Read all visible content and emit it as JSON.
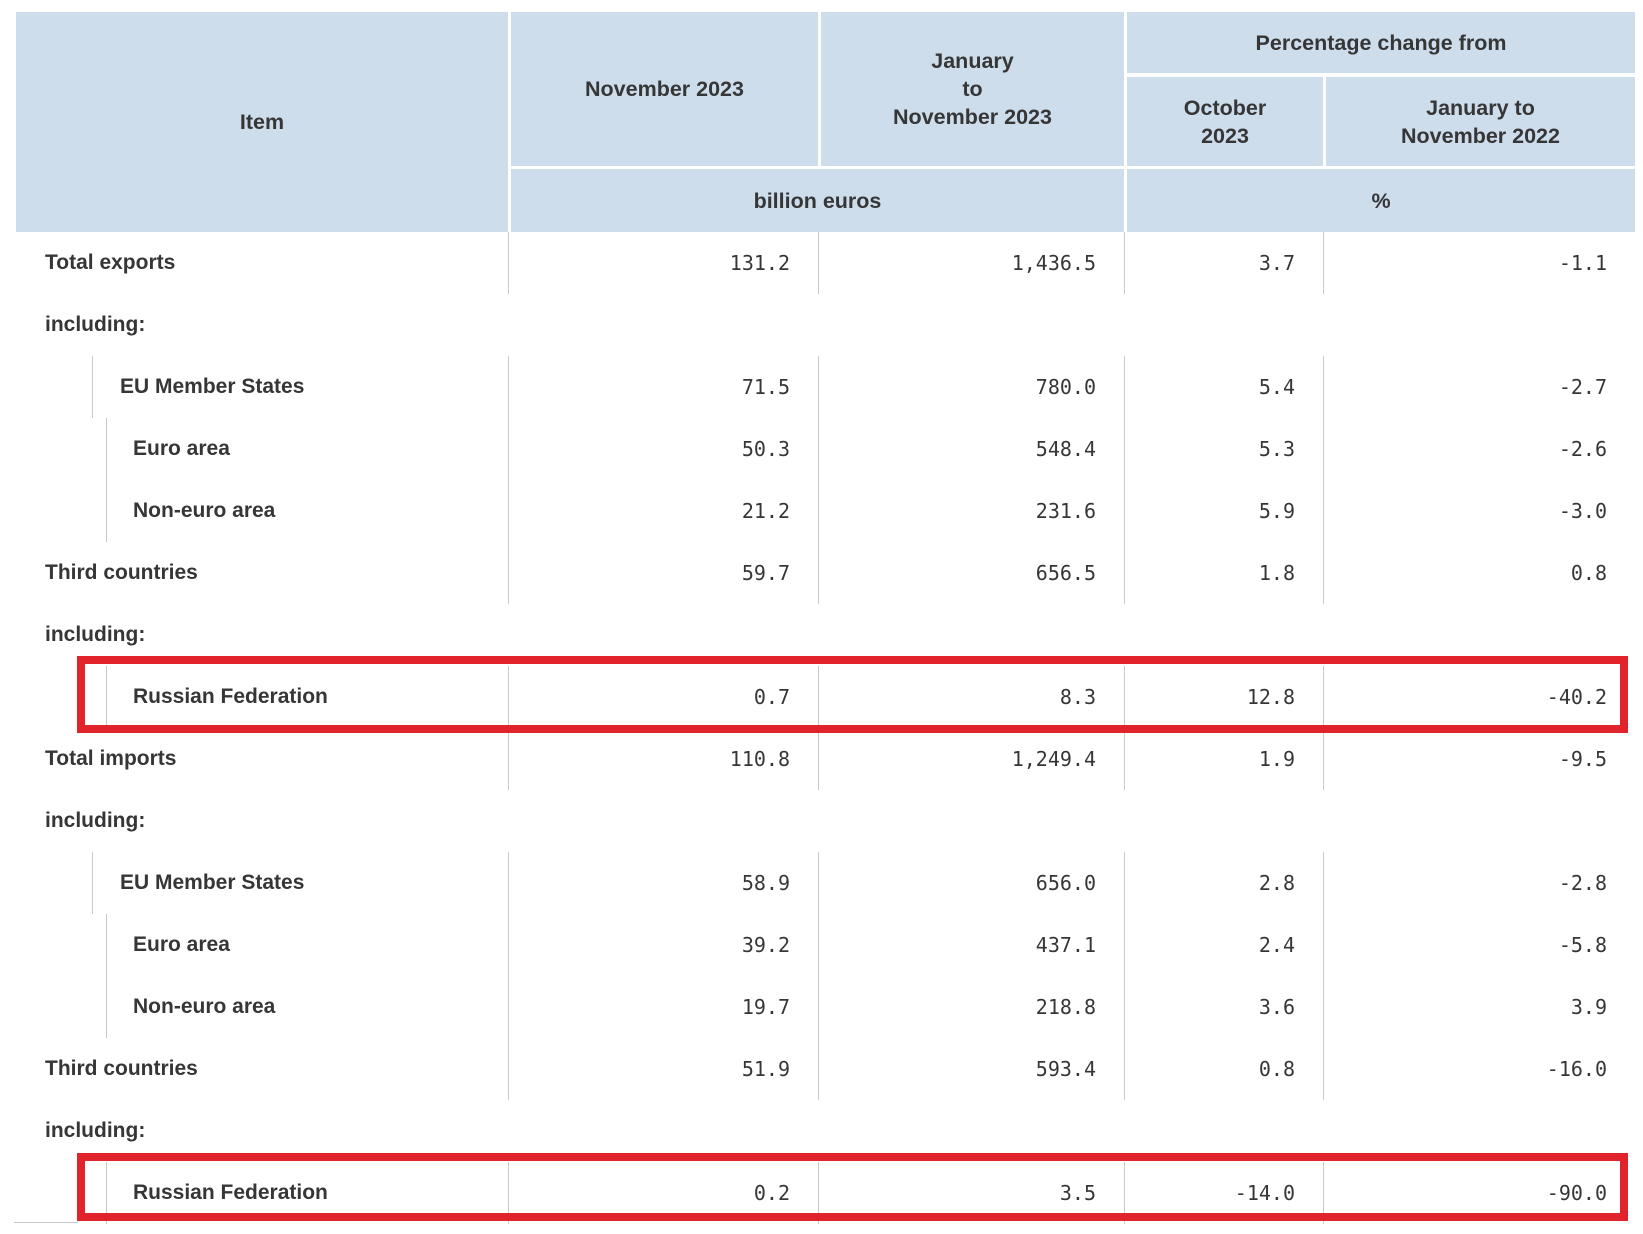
{
  "table": {
    "header": {
      "item": "Item",
      "november_2023": "November 2023",
      "jan_to_nov_2023_lines": [
        "January",
        "to",
        "November 2023"
      ],
      "percentage_change_from": "Percentage change from",
      "october_2023_lines": [
        "October",
        "2023"
      ],
      "jan_to_nov_2022_lines": [
        "January to",
        "November 2022"
      ],
      "unit_left": "billion euros",
      "unit_right": "%"
    },
    "rows": [
      {
        "label": "Total exports",
        "indent": 0,
        "values": [
          "131.2",
          "1,436.5",
          "3.7",
          "-1.1"
        ]
      },
      {
        "label": "including:",
        "type": "including"
      },
      {
        "label": "EU Member States",
        "indent": 1,
        "values": [
          "71.5",
          "780.0",
          "5.4",
          "-2.7"
        ]
      },
      {
        "label": "Euro area",
        "indent": 2,
        "values": [
          "50.3",
          "548.4",
          "5.3",
          "-2.6"
        ]
      },
      {
        "label": "Non-euro area",
        "indent": 2,
        "values": [
          "21.2",
          "231.6",
          "5.9",
          "-3.0"
        ]
      },
      {
        "label": "Third countries",
        "indent": 0,
        "values": [
          "59.7",
          "656.5",
          "1.8",
          "0.8"
        ]
      },
      {
        "label": "including:",
        "type": "including"
      },
      {
        "label": "Russian Federation",
        "indent": 2,
        "values": [
          "0.7",
          "8.3",
          "12.8",
          "-40.2"
        ],
        "highlighted": true
      },
      {
        "label": "Total imports",
        "indent": 0,
        "values": [
          "110.8",
          "1,249.4",
          "1.9",
          "-9.5"
        ]
      },
      {
        "label": "including:",
        "type": "including"
      },
      {
        "label": "EU Member States",
        "indent": 1,
        "values": [
          "58.9",
          "656.0",
          "2.8",
          "-2.8"
        ]
      },
      {
        "label": "Euro area",
        "indent": 2,
        "values": [
          "39.2",
          "437.1",
          "2.4",
          "-5.8"
        ]
      },
      {
        "label": "Non-euro area",
        "indent": 2,
        "values": [
          "19.7",
          "218.8",
          "3.6",
          "3.9"
        ]
      },
      {
        "label": "Third countries",
        "indent": 0,
        "values": [
          "51.9",
          "593.4",
          "0.8",
          "-16.0"
        ]
      },
      {
        "label": "including:",
        "type": "including"
      },
      {
        "label": "Russian Federation",
        "indent": 2,
        "values": [
          "0.2",
          "3.5",
          "-14.0",
          "-90.0"
        ],
        "highlighted": true
      }
    ],
    "colors": {
      "header_bg": "#cdddec",
      "grid_line": "#c8c8c8",
      "text": "#363636",
      "highlight_border": "#e1232b"
    }
  }
}
